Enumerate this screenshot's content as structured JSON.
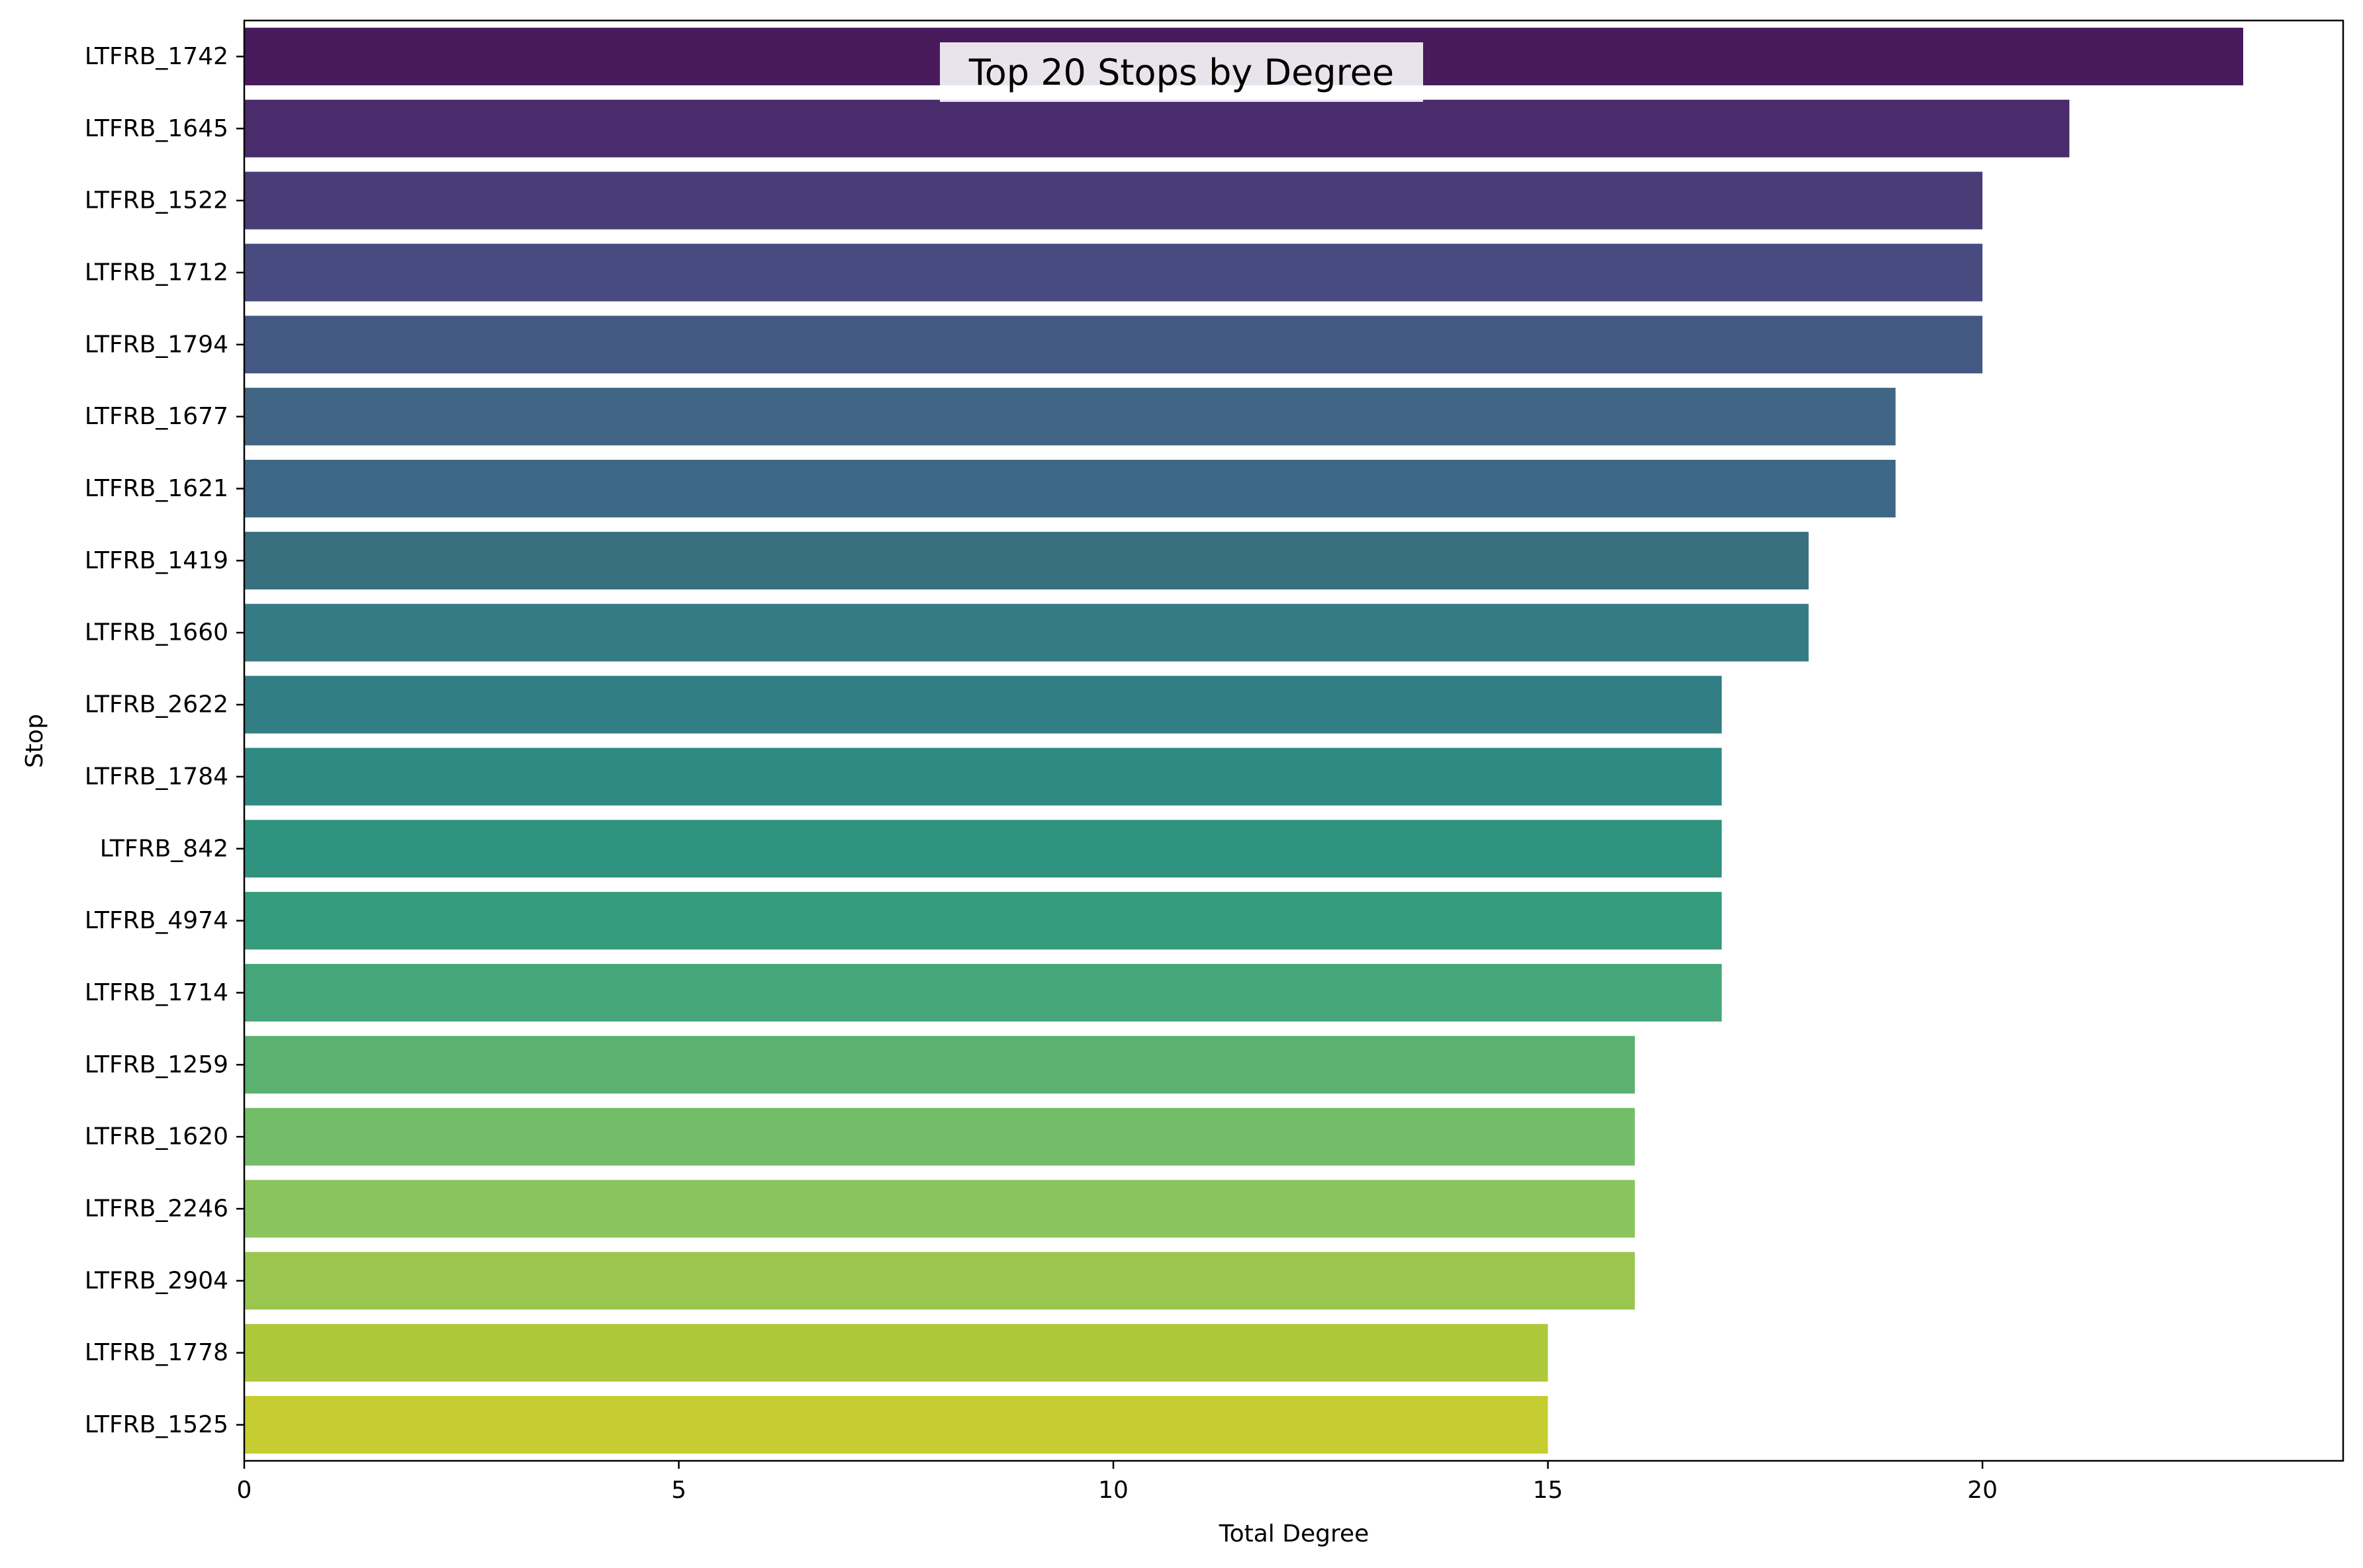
{
  "chart_data": {
    "type": "bar",
    "orientation": "horizontal",
    "title": "Top 20 Stops by Degree",
    "xlabel": "Total Degree",
    "ylabel": "Stop",
    "xlim": [
      0,
      24.15
    ],
    "xticks": [
      0,
      5,
      10,
      15,
      20
    ],
    "grid": false,
    "legend": "none",
    "categories": [
      "LTFRB_1742",
      "LTFRB_1645",
      "LTFRB_1522",
      "LTFRB_1712",
      "LTFRB_1794",
      "LTFRB_1677",
      "LTFRB_1621",
      "LTFRB_1419",
      "LTFRB_1660",
      "LTFRB_2622",
      "LTFRB_1784",
      "LTFRB_842",
      "LTFRB_4974",
      "LTFRB_1714",
      "LTFRB_1259",
      "LTFRB_1620",
      "LTFRB_2246",
      "LTFRB_2904",
      "LTFRB_1778",
      "LTFRB_1525"
    ],
    "values": [
      23,
      21,
      20,
      20,
      20,
      19,
      19,
      18,
      18,
      17,
      17,
      17,
      17,
      17,
      16,
      16,
      16,
      16,
      15,
      15
    ],
    "colors": [
      "#481a5c",
      "#4a2b6b",
      "#493c77",
      "#474b7f",
      "#435983",
      "#416685",
      "#3d6886",
      "#387080",
      "#357b85",
      "#317f84",
      "#2f8a83",
      "#2f9380",
      "#359d7e",
      "#45a779",
      "#5bb270",
      "#73bd68",
      "#89c45e",
      "#9ac64f",
      "#aec83c",
      "#c5cd30"
    ]
  }
}
